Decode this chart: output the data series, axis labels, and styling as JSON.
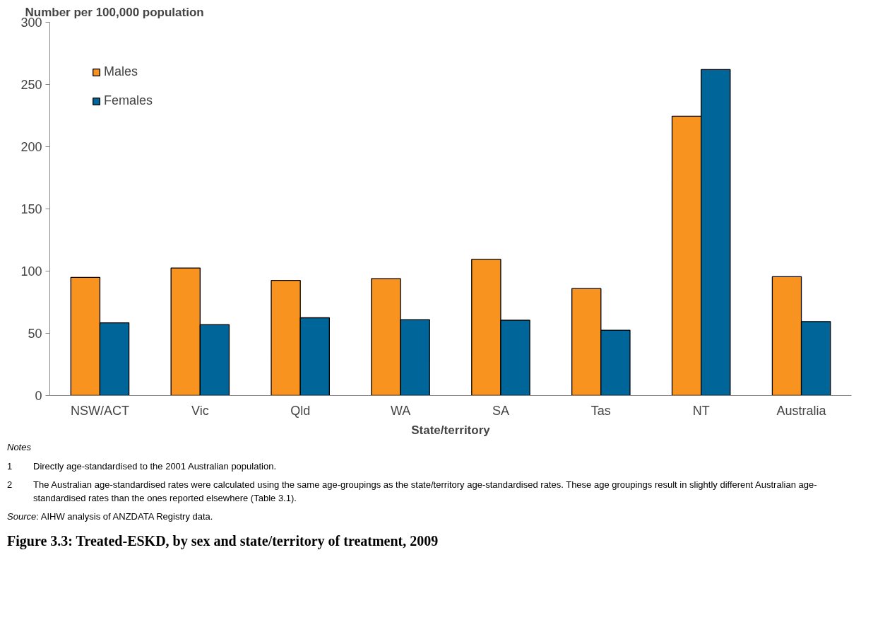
{
  "chart_data": {
    "type": "bar",
    "title": "Figure 3.3: Treated-ESKD, by sex and state/territory of treatment, 2009",
    "xlabel": "State/territory",
    "ylabel": "Number per 100,000 population",
    "categories": [
      "NSW/ACT",
      "Vic",
      "Qld",
      "WA",
      "SA",
      "Tas",
      "NT",
      "Australia"
    ],
    "series": [
      {
        "name": "Males",
        "color": "#f7931e",
        "values": [
          95,
          102.5,
          92.5,
          94,
          109.5,
          86,
          224.5,
          95.5
        ]
      },
      {
        "name": "Females",
        "color": "#006699",
        "values": [
          58.5,
          57,
          62.5,
          61,
          60.5,
          52.5,
          262,
          59.5
        ]
      }
    ],
    "ylim": [
      0,
      300
    ],
    "yticks": [
      0,
      50,
      100,
      150,
      200,
      250,
      300
    ],
    "grid": false,
    "legend": "top left",
    "annotations": [
      "Notes",
      "1\tDirectly age-standardised to the 2001 Australian population.",
      "2\tThe Australian age-standardised rates were calculated using the same age-groupings as the state/territory age-standardised rates. These age groupings result in slightly different Australian age-standardised rates than the ones reported elsewhere (Table 3.1).",
      "Source: AIHW analysis of ANZDATA Registry data."
    ]
  }
}
